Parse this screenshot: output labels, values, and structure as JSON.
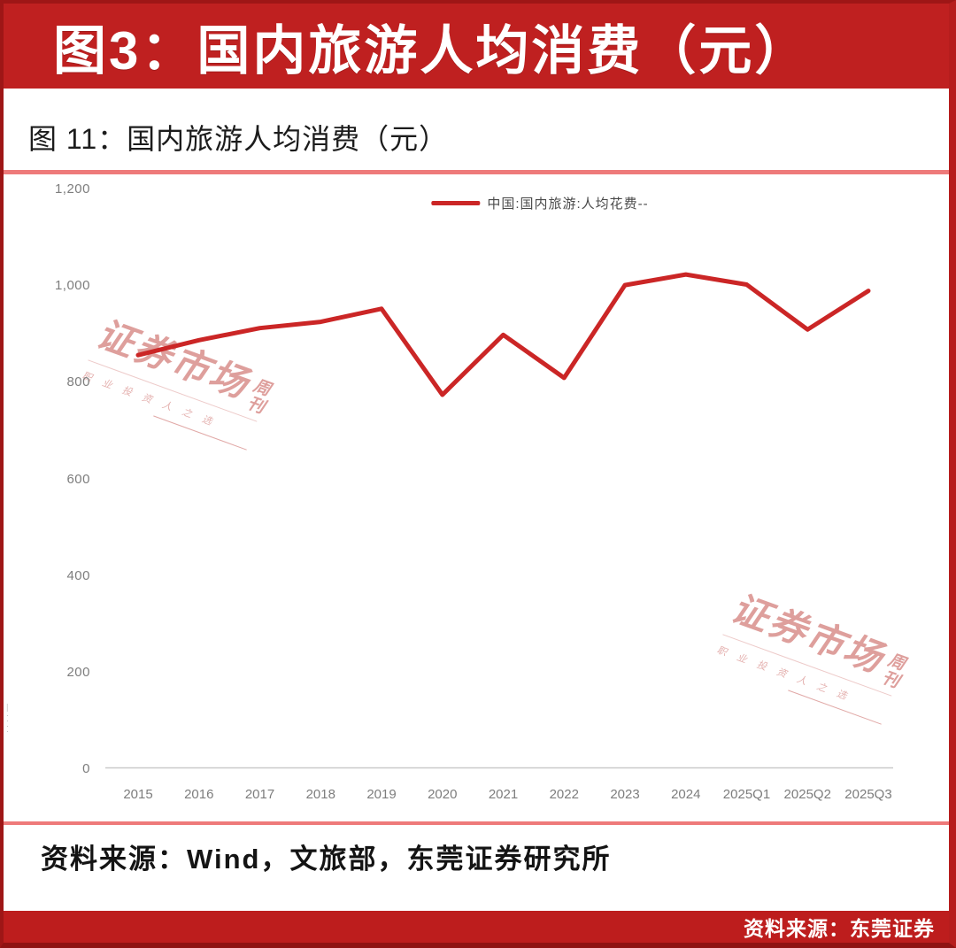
{
  "banner": {
    "title": "图3：国内旅游人均消费（元）"
  },
  "figure": {
    "title": "图 11：国内旅游人均消费（元）",
    "source_note": "资料来源：Wind，文旅部，东莞证券研究所",
    "left_edge_note": "—····"
  },
  "footer": {
    "source_label": "资料来源：东莞证券"
  },
  "watermark": {
    "main": "证券市场",
    "sub": "周刊",
    "tagline": "职业投资人之选"
  },
  "colors": {
    "banner_red": "#bf2020",
    "frame_dark_red": "#9e1616",
    "separator_red": "#ee7a7a",
    "line_red": "#cb2626",
    "footer_red": "#bd1d1d",
    "axis_gray": "#c9c9c9",
    "tick_gray": "#7d7d7d",
    "watermark_red": "#c4514d"
  },
  "chart_data": {
    "type": "line",
    "title": "图 11：国内旅游人均消费（元）",
    "legend": [
      {
        "label": "中国:国内旅游:人均花费--",
        "color": "#cb2626"
      }
    ],
    "legend_position": "top-center",
    "categories": [
      "2015",
      "2016",
      "2017",
      "2018",
      "2019",
      "2020",
      "2021",
      "2022",
      "2023",
      "2024",
      "2025Q1",
      "2025Q2",
      "2025Q3"
    ],
    "series": [
      {
        "name": "中国:国内旅游:人均花费",
        "color": "#cb2626",
        "values": [
          857,
          888,
          913,
          926,
          953,
          775,
          899,
          810,
          1002,
          1024,
          1003,
          910,
          990
        ]
      }
    ],
    "xlabel": "",
    "ylabel": "",
    "ylim": [
      0,
      1200
    ],
    "yticks": [
      0,
      200,
      400,
      600,
      800,
      1000,
      1200
    ],
    "grid": false
  }
}
